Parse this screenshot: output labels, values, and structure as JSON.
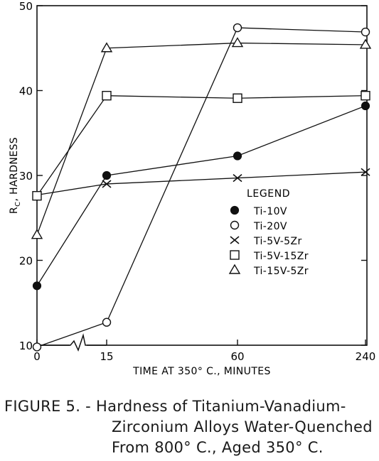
{
  "chart_data": {
    "type": "line",
    "title": "",
    "xlabel": "TIME AT 350° C., MINUTES",
    "ylabel": "R<sub>C</sub>, HARDNESS",
    "ylabel_main": "R",
    "ylabel_sub": "C",
    "ylabel_rest": ", HARDNESS",
    "x_scale": "categorical (non-linear)",
    "categories": [
      "0",
      "15",
      "60",
      "240"
    ],
    "y_ticks": [
      "10",
      "20",
      "30",
      "40",
      "50"
    ],
    "ylim": [
      10,
      50
    ],
    "grid": false,
    "legend_title": "LEGEND",
    "legend_position": "right-middle",
    "axis_break": "x-axis between 0 and 15",
    "series": [
      {
        "name": "Ti-10V",
        "marker": "filled-circle",
        "values": [
          17,
          30,
          32.3,
          38.2
        ]
      },
      {
        "name": "Ti-20V",
        "marker": "open-circle",
        "values": [
          9.8,
          12.7,
          47.4,
          46.9
        ]
      },
      {
        "name": "Ti-5V-5Zr",
        "marker": "x",
        "values": [
          27.7,
          29,
          29.7,
          30.4
        ]
      },
      {
        "name": "Ti-5V-15Zr",
        "marker": "open-square",
        "values": [
          27.6,
          39.4,
          39.1,
          39.4
        ]
      },
      {
        "name": "Ti-15V-5Zr",
        "marker": "open-triangle",
        "values": [
          23,
          45,
          45.6,
          45.4
        ]
      }
    ]
  },
  "caption": {
    "line1": "FIGURE 5. - Hardness of Titanium-Vanadium-",
    "line2": "Zirconium Alloys Water-Quenched",
    "line3": "From 800° C., Aged 350° C."
  }
}
